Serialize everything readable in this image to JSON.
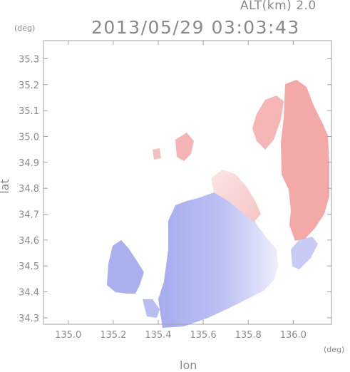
{
  "header": {
    "altitude_label": "ALT(km) 2.0",
    "timestamp": "2013/05/29 03:03:43"
  },
  "axes": {
    "x_label": "lon",
    "y_label": "lat",
    "x_unit": "(deg)",
    "y_unit": "(deg)",
    "x_ticks": [
      "135.0",
      "135.2",
      "135.4",
      "135.6",
      "135.8",
      "136.0"
    ],
    "y_ticks": [
      "35.3",
      "35.2",
      "35.1",
      "35.0",
      "34.9",
      "34.8",
      "34.7",
      "34.6",
      "34.5",
      "34.4",
      "34.3"
    ]
  },
  "map": {
    "x_range": [
      134.89,
      136.17
    ],
    "y_range": [
      34.275,
      35.37
    ],
    "colors": {
      "toward_radar": "#aab0ee",
      "away_from_radar": "#f4b0b0",
      "frame": "#a0a0a0"
    }
  }
}
